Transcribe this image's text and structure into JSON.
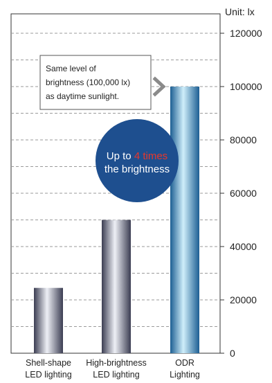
{
  "chart_data": {
    "type": "bar",
    "unit_label": "Unit: lx",
    "categories": [
      [
        "Shell-shape",
        "LED lighting"
      ],
      [
        "High-brightness",
        "LED lighting"
      ],
      [
        "ODR",
        "Lighting"
      ]
    ],
    "values": [
      24500,
      50000,
      100000
    ],
    "ylim": [
      0,
      120000
    ],
    "yticks": [
      0,
      20000,
      40000,
      60000,
      80000,
      100000,
      120000
    ],
    "grid": true,
    "annotation": [
      "Same level of",
      "brightness (100,000 lx)",
      "as daytime sunlight."
    ],
    "callout": {
      "prefix": "Up to",
      "highlight": "4 times",
      "line2": "the brightness"
    },
    "colors": {
      "bar_dark": "#3b3d52",
      "bar_light": "#eef0f6",
      "odr_dark": "#1d5f93",
      "odr_light": "#cfeefa",
      "circle": "#1e4f8f",
      "highlight": "#e8372a",
      "grid": "#9a9a9a",
      "arrow": "#8a8a8a"
    }
  }
}
